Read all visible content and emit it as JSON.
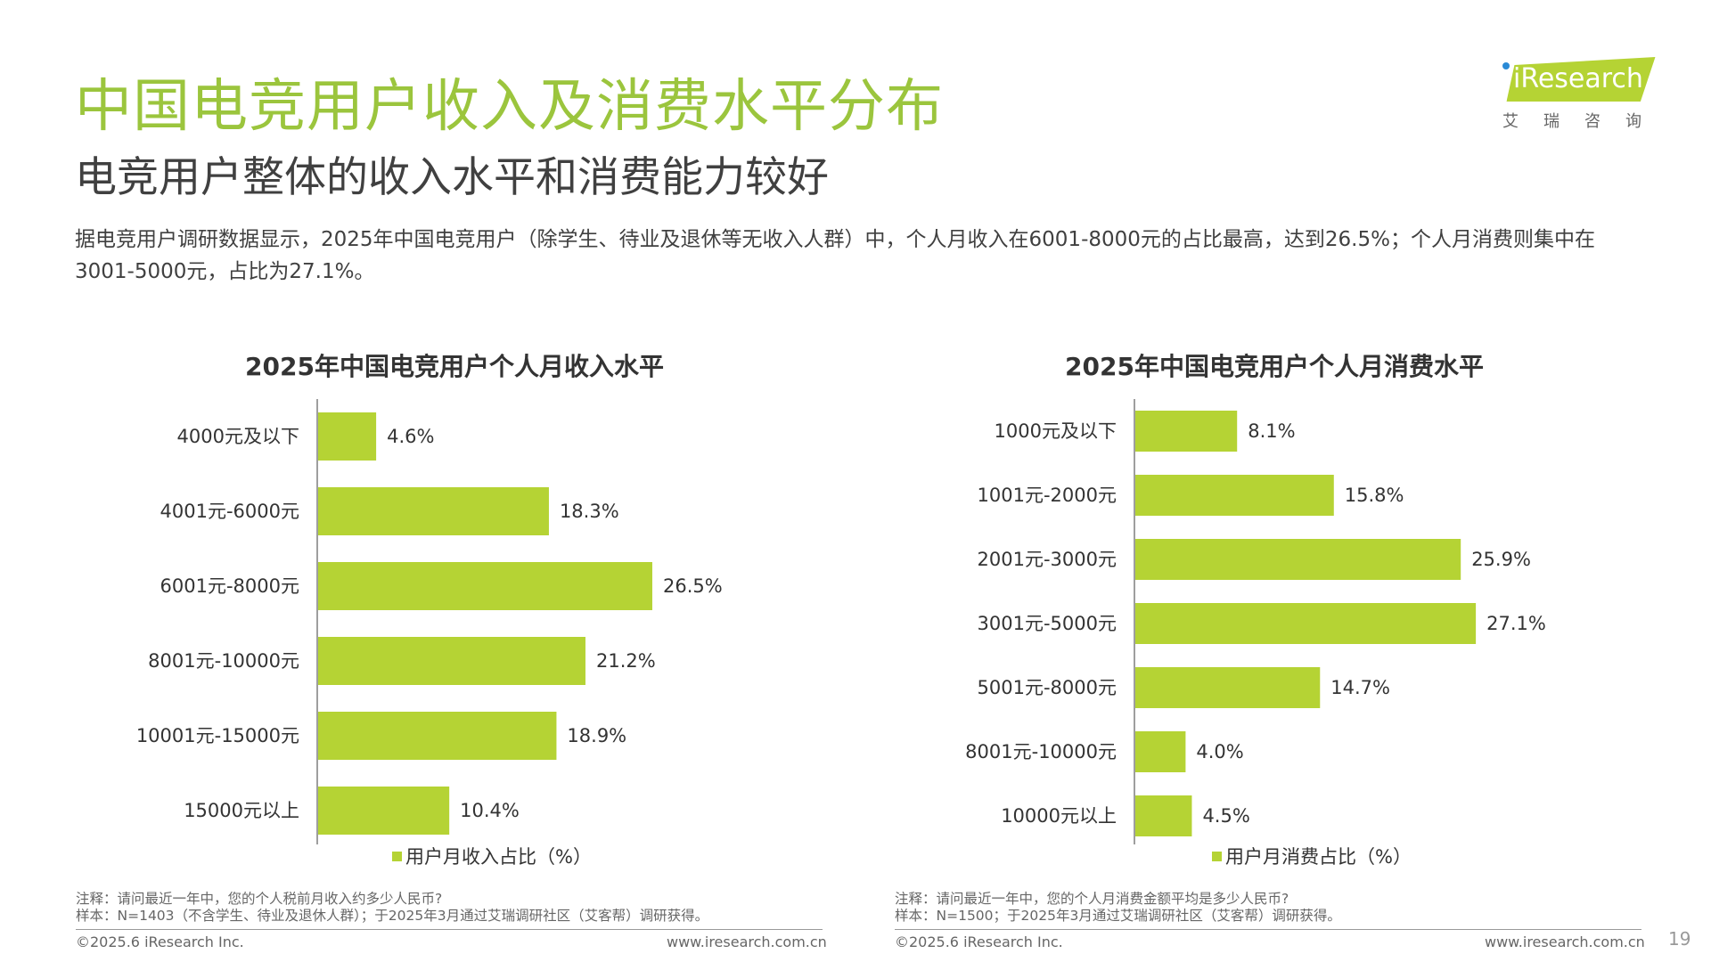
{
  "page": {
    "title": "中国电竞用户收入及消费水平分布",
    "subtitle": "电竞用户整体的收入水平和消费能力较好",
    "description": "据电竞用户调研数据显示，2025年中国电竞用户（除学生、待业及退休等无收入人群）中，个人月收入在6001-8000元的占比最高，达到26.5%；个人月消费则集中在3001-5000元，占比为27.1%。",
    "page_number": "19"
  },
  "logo": {
    "word": "iResearch",
    "chinese": "艾瑞咨询"
  },
  "colors": {
    "accent": "#9bc53d",
    "bar": "#b5d334"
  },
  "chart_data": [
    {
      "type": "bar",
      "orientation": "horizontal",
      "title": "2025年中国电竞用户个人月收入水平",
      "categories": [
        "4000元及以下",
        "4001元-6000元",
        "6001元-8000元",
        "8001元-10000元",
        "10001元-15000元",
        "15000元以上"
      ],
      "series": [
        {
          "name": "用户月收入占比（%）",
          "values": [
            4.6,
            18.3,
            26.5,
            21.2,
            18.9,
            10.4
          ]
        }
      ],
      "data_labels": [
        "4.6%",
        "18.3%",
        "26.5%",
        "21.2%",
        "18.9%",
        "10.4%"
      ],
      "legend": "bottom",
      "grid": false,
      "note": "注释：请问最近一年中，您的个人税前月收入约多少人民币?",
      "sample": "样本：N=1403（不含学生、待业及退休人群）；于2025年3月通过艾瑞调研社区（艾客帮）调研获得。",
      "footer_left": "©2025.6 iResearch Inc.",
      "footer_right": "www.iresearch.com.cn"
    },
    {
      "type": "bar",
      "orientation": "horizontal",
      "title": "2025年中国电竞用户个人月消费水平",
      "categories": [
        "1000元及以下",
        "1001元-2000元",
        "2001元-3000元",
        "3001元-5000元",
        "5001元-8000元",
        "8001元-10000元",
        "10000元以上"
      ],
      "series": [
        {
          "name": "用户月消费占比（%）",
          "values": [
            8.1,
            15.8,
            25.9,
            27.1,
            14.7,
            4.0,
            4.5
          ]
        }
      ],
      "data_labels": [
        "8.1%",
        "15.8%",
        "25.9%",
        "27.1%",
        "14.7%",
        "4.0%",
        "4.5%"
      ],
      "legend": "bottom",
      "grid": false,
      "note": "注释：请问最近一年中，您的个人月消费金额平均是多少人民币?",
      "sample": "样本：N=1500；于2025年3月通过艾瑞调研社区（艾客帮）调研获得。",
      "footer_left": "©2025.6 iResearch Inc.",
      "footer_right": "www.iresearch.com.cn"
    }
  ]
}
